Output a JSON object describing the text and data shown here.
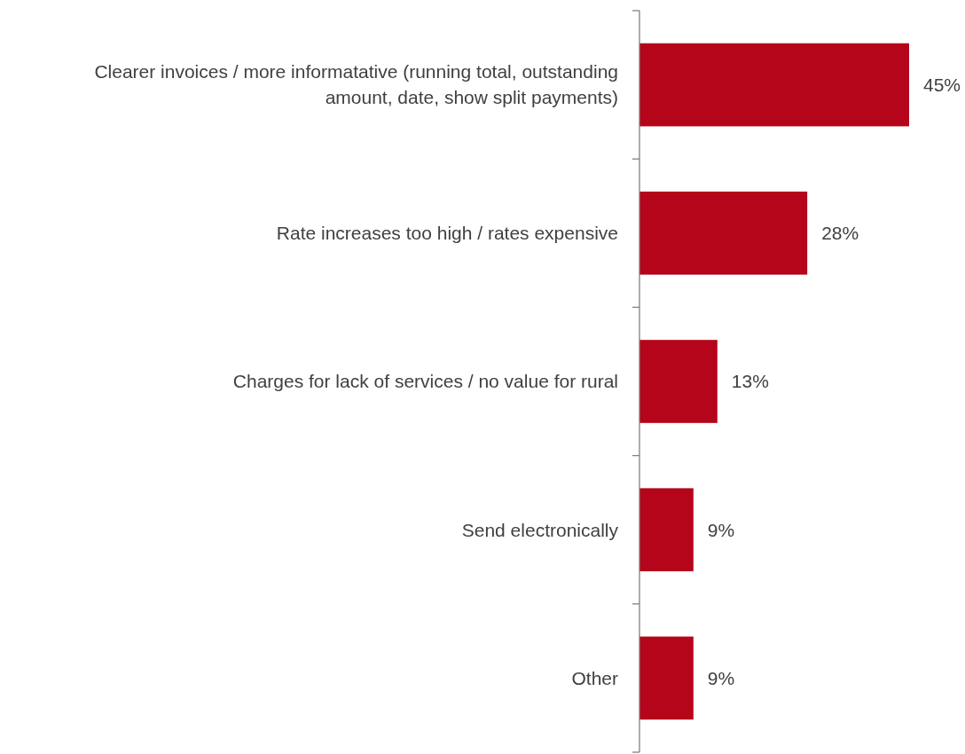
{
  "chart_data": {
    "type": "bar",
    "orientation": "horizontal",
    "categories": [
      "Clearer invoices / more informatative (running total, outstanding amount, date, show split payments)",
      "Rate increases too high / rates expensive",
      "Charges for lack of services / no value for rural",
      "Send electronically",
      "Other"
    ],
    "values": [
      45,
      28,
      13,
      9,
      9
    ],
    "value_labels": [
      "45%",
      "28%",
      "13%",
      "9%",
      "9%"
    ],
    "color": "#b5051a"
  }
}
